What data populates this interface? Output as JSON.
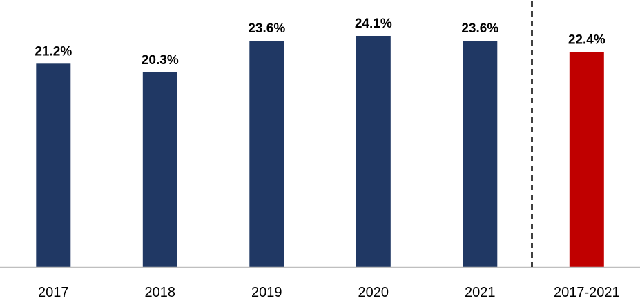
{
  "chart_data": {
    "type": "bar",
    "categories": [
      "2017",
      "2018",
      "2019",
      "2020",
      "2021",
      "2017-2021"
    ],
    "values": [
      21.2,
      20.3,
      23.6,
      24.1,
      23.6,
      22.4
    ],
    "value_labels": [
      "21.2%",
      "20.3%",
      "23.6%",
      "24.1%",
      "23.6%",
      "22.4%"
    ],
    "title": "",
    "xlabel": "",
    "ylabel": "",
    "ylim": [
      0,
      25
    ],
    "grid": false,
    "legend": "none",
    "colors": {
      "annual": "#203864",
      "aggregate": "#c00000",
      "axis": "#bfbfbf",
      "separator": "#000000"
    },
    "highlight_index": 5,
    "separator_before_index": 5
  }
}
